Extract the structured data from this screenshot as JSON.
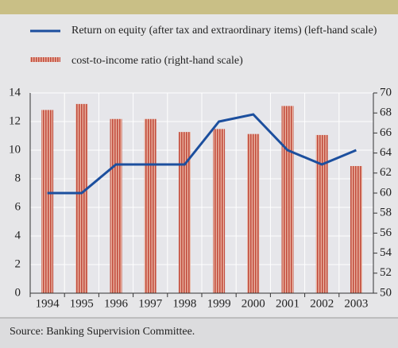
{
  "chart_data": {
    "type": "bar_line",
    "categories": [
      "1994",
      "1995",
      "1996",
      "1997",
      "1998",
      "1999",
      "2000",
      "2001",
      "2002",
      "2003"
    ],
    "series": [
      {
        "name": "Return on equity (after tax and extraordinary items) (left-hand scale)",
        "type": "line",
        "axis": "y",
        "color": "#1c4f9e",
        "values": [
          7,
          7,
          9,
          9,
          9,
          12,
          12.5,
          10,
          9,
          10
        ]
      },
      {
        "name": "cost-to-income ratio (right-hand scale)",
        "type": "bar",
        "axis": "y2",
        "color": "#c8604e",
        "values": [
          68.3,
          68.9,
          67.4,
          67.4,
          66.1,
          66.4,
          65.9,
          68.7,
          65.8,
          62.7
        ]
      }
    ],
    "ylim": [
      0,
      14
    ],
    "yticks": [
      0,
      2,
      4,
      6,
      8,
      10,
      12,
      14
    ],
    "y2lim": [
      50,
      70
    ],
    "y2ticks": [
      50,
      52,
      54,
      56,
      58,
      60,
      62,
      64,
      66,
      68,
      70
    ],
    "grid": true,
    "source": "Source: Banking Supervision Committee."
  }
}
